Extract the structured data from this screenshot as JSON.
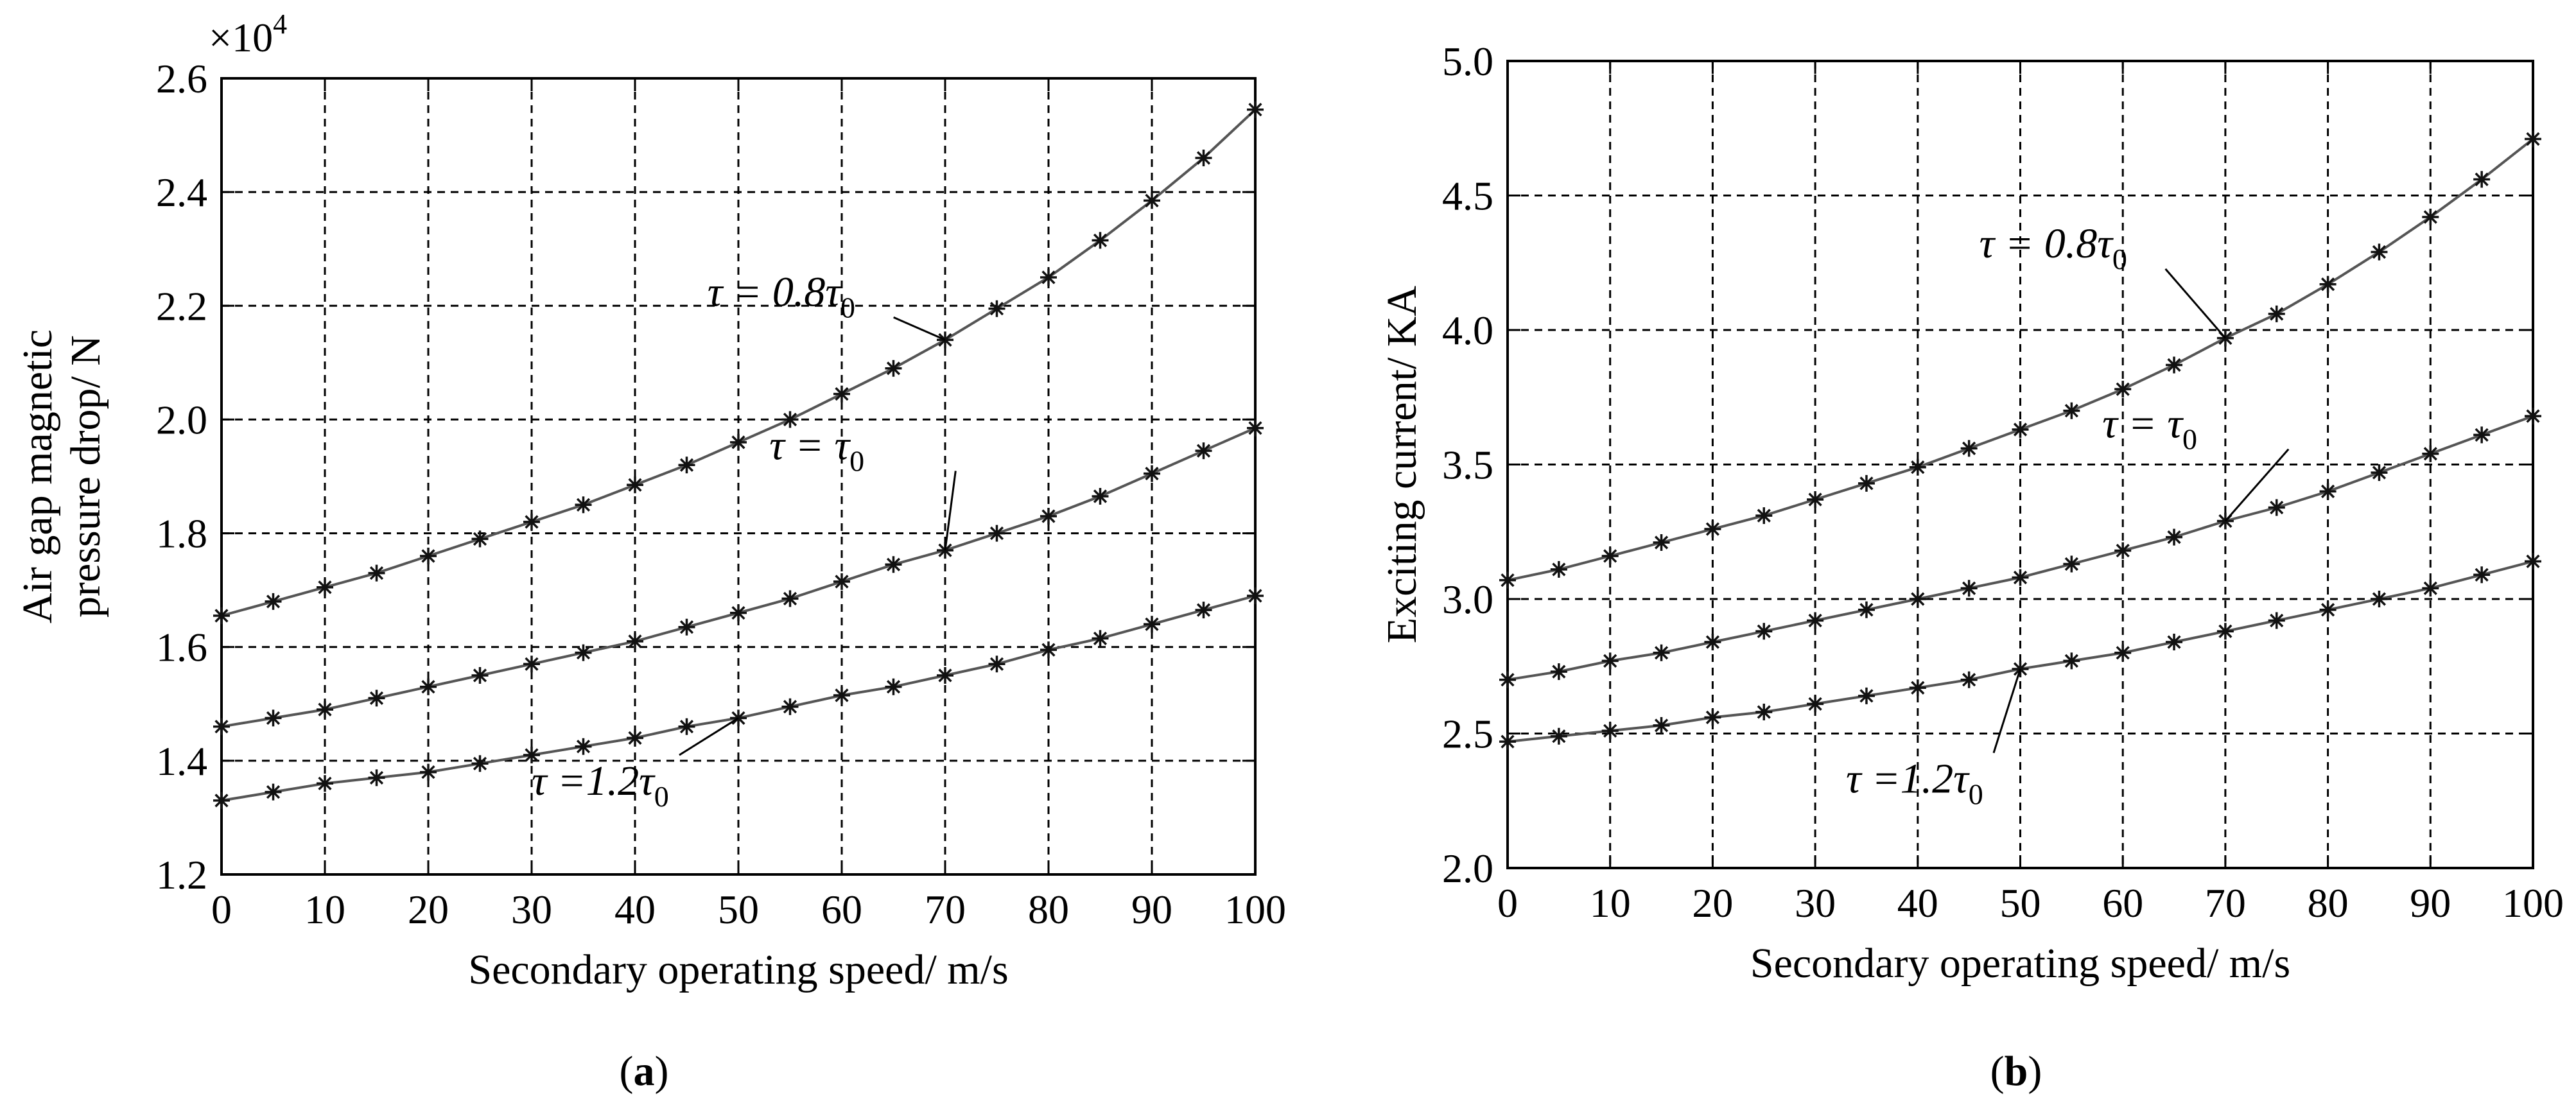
{
  "chart_data": [
    {
      "type": "line",
      "panel_label": "a",
      "xlabel": "Secondary operating speed/ m/s",
      "ylabel_lines": [
        "Air gap magnetic",
        "pressure drop/ N"
      ],
      "y_multiplier": "×10",
      "y_multiplier_exp": "4",
      "xlim": [
        0,
        100
      ],
      "ylim": [
        1.2,
        2.6
      ],
      "xticks": [
        0,
        10,
        20,
        30,
        40,
        50,
        60,
        70,
        80,
        90,
        100
      ],
      "xtick_labels": [
        "0",
        "10",
        "20",
        "30",
        "40",
        "50",
        "60",
        "70",
        "80",
        "90",
        "100"
      ],
      "yticks": [
        1.2,
        1.4,
        1.6,
        1.8,
        2.0,
        2.2,
        2.4,
        2.6
      ],
      "ytick_labels": [
        "1.2",
        "1.4",
        "1.6",
        "1.8",
        "2.0",
        "2.2",
        "2.4",
        "2.6"
      ],
      "grid": true,
      "x": [
        0,
        5,
        10,
        15,
        20,
        25,
        30,
        35,
        40,
        45,
        50,
        55,
        60,
        65,
        70,
        75,
        80,
        85,
        90,
        95,
        100
      ],
      "series": [
        {
          "name": "τ = 0.8τ0",
          "values": [
            1.655,
            1.68,
            1.705,
            1.73,
            1.76,
            1.79,
            1.82,
            1.85,
            1.885,
            1.92,
            1.96,
            2.0,
            2.045,
            2.09,
            2.14,
            2.195,
            2.25,
            2.315,
            2.385,
            2.46,
            2.545
          ]
        },
        {
          "name": "τ = τ0",
          "values": [
            1.46,
            1.475,
            1.49,
            1.51,
            1.53,
            1.55,
            1.57,
            1.59,
            1.61,
            1.635,
            1.66,
            1.685,
            1.715,
            1.745,
            1.77,
            1.8,
            1.83,
            1.865,
            1.905,
            1.945,
            1.985
          ]
        },
        {
          "name": "τ = 1.2τ0",
          "values": [
            1.33,
            1.345,
            1.36,
            1.37,
            1.38,
            1.395,
            1.41,
            1.425,
            1.44,
            1.46,
            1.475,
            1.495,
            1.515,
            1.53,
            1.55,
            1.57,
            1.595,
            1.615,
            1.64,
            1.665,
            1.69
          ]
        }
      ],
      "annotations": [
        {
          "id": "ann-a-08",
          "series": 0,
          "main": "τ = 0.8τ",
          "sub": "0",
          "at_x": 70,
          "label_x": 47,
          "label_y": 2.2
        },
        {
          "id": "ann-a-10",
          "series": 1,
          "main": "τ = τ",
          "sub": "0",
          "at_x": 70,
          "label_x": 53,
          "label_y": 1.93
        },
        {
          "id": "ann-a-12",
          "series": 2,
          "main": "τ =1.2τ",
          "sub": "0",
          "at_x": 50,
          "label_x": 30,
          "label_y": 1.34
        }
      ]
    },
    {
      "type": "line",
      "panel_label": "b",
      "xlabel": "Secondary operating speed/ m/s",
      "ylabel_lines": [
        "Exciting current/ KA"
      ],
      "xlim": [
        0,
        100
      ],
      "ylim": [
        2.0,
        5.0
      ],
      "xticks": [
        0,
        10,
        20,
        30,
        40,
        50,
        60,
        70,
        80,
        90,
        100
      ],
      "xtick_labels": [
        "0",
        "10",
        "20",
        "30",
        "40",
        "50",
        "60",
        "70",
        "80",
        "90",
        "100"
      ],
      "yticks": [
        2.0,
        2.5,
        3.0,
        3.5,
        4.0,
        4.5,
        5.0
      ],
      "ytick_labels": [
        "2.0",
        "2.5",
        "3.0",
        "3.5",
        "4.0",
        "4.5",
        "5.0"
      ],
      "grid": true,
      "x": [
        0,
        5,
        10,
        15,
        20,
        25,
        30,
        35,
        40,
        45,
        50,
        55,
        60,
        65,
        70,
        75,
        80,
        85,
        90,
        95,
        100
      ],
      "series": [
        {
          "name": "τ = 0.8τ0",
          "values": [
            3.07,
            3.11,
            3.16,
            3.21,
            3.26,
            3.31,
            3.37,
            3.43,
            3.49,
            3.56,
            3.63,
            3.7,
            3.78,
            3.87,
            3.97,
            4.06,
            4.17,
            4.29,
            4.42,
            4.56,
            4.71
          ]
        },
        {
          "name": "τ = τ0",
          "values": [
            2.7,
            2.73,
            2.77,
            2.8,
            2.84,
            2.88,
            2.92,
            2.96,
            3.0,
            3.04,
            3.08,
            3.13,
            3.18,
            3.23,
            3.29,
            3.34,
            3.4,
            3.47,
            3.54,
            3.61,
            3.68
          ]
        },
        {
          "name": "τ = 1.2τ0",
          "values": [
            2.47,
            2.49,
            2.51,
            2.53,
            2.56,
            2.58,
            2.61,
            2.64,
            2.67,
            2.7,
            2.74,
            2.77,
            2.8,
            2.84,
            2.88,
            2.92,
            2.96,
            3.0,
            3.04,
            3.09,
            3.14
          ]
        }
      ],
      "annotations": [
        {
          "id": "ann-b-08",
          "series": 0,
          "main": "τ = 0.8τ",
          "sub": "0",
          "at_x": 70,
          "label_x": 46,
          "label_y": 4.27
        },
        {
          "id": "ann-b-10",
          "series": 1,
          "main": "τ = τ",
          "sub": "0",
          "at_x": 70,
          "label_x": 58,
          "label_y": 3.6
        },
        {
          "id": "ann-b-12",
          "series": 2,
          "main": "τ =1.2τ",
          "sub": "0",
          "at_x": 50,
          "label_x": 33,
          "label_y": 2.28
        }
      ]
    }
  ]
}
